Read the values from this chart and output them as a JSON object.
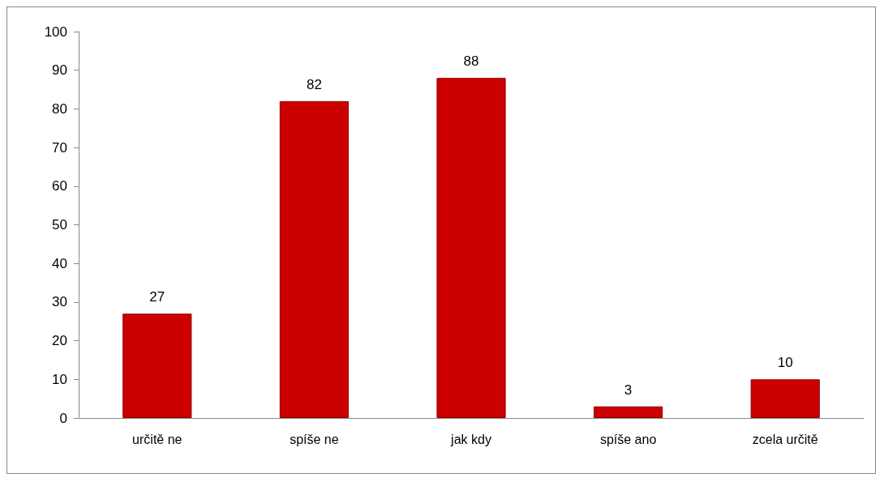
{
  "chart_data": {
    "type": "bar",
    "categories": [
      "určitě ne",
      "spíše ne",
      "jak kdy",
      "spíše ano",
      "zcela určitě"
    ],
    "values": [
      27,
      82,
      88,
      3,
      10
    ],
    "color": "#cc0000",
    "ylim": [
      0,
      100
    ],
    "yticks": [
      0,
      10,
      20,
      30,
      40,
      50,
      60,
      70,
      80,
      90,
      100
    ],
    "grid": false,
    "data_labels": true
  }
}
